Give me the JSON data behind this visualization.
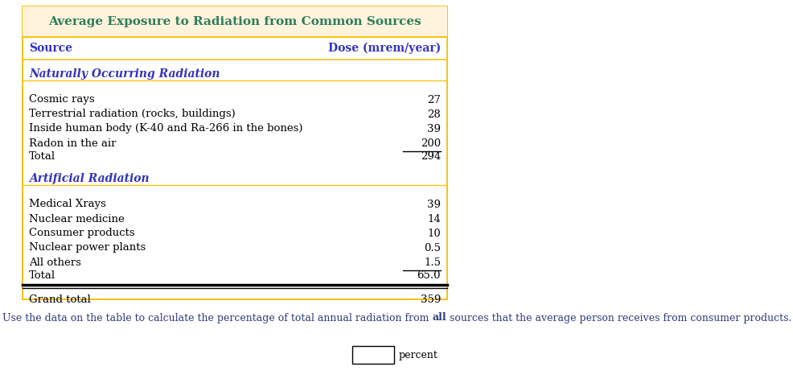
{
  "title": "Average Exposure to Radiation from Common Sources",
  "title_color": "#2E7D5B",
  "title_bg_color": "#FFF3DC",
  "table_border_color": "#F5C518",
  "col1_header": "Source",
  "col2_header": "Dose (mrem/year)",
  "header_text_color": "#3333BB",
  "section_color": "#3333BB",
  "natural_section": "Naturally Occurring Radiation",
  "natural_rows": [
    [
      "Cosmic rays",
      "27"
    ],
    [
      "Terrestrial radiation (rocks, buildings)",
      "28"
    ],
    [
      "Inside human body (K-40 and Ra-266 in the bones)",
      "39"
    ],
    [
      "Radon in the air",
      "200"
    ]
  ],
  "natural_total_label": "Total",
  "natural_total_value": "294",
  "artificial_section": "Artificial Radiation",
  "artificial_rows": [
    [
      "Medical Xrays",
      "39"
    ],
    [
      "Nuclear medicine",
      "14"
    ],
    [
      "Consumer products",
      "10"
    ],
    [
      "Nuclear power plants",
      "0.5"
    ],
    [
      "All others",
      "1.5"
    ]
  ],
  "artificial_total_label": "Total",
  "artificial_total_value": "65.0",
  "grand_total_label": "Grand total",
  "grand_total_value": "359",
  "underline_rows": [
    "Radon in the air",
    "All others"
  ],
  "question_parts": [
    "Use the data on the table to calculate the percentage of total annual radiation from ",
    "all",
    " sources that the average person receives from consumer products."
  ],
  "question_color": "#2E3A7A",
  "answer_label": "percent",
  "bg_color": "#FFFFFF",
  "font_family": "DejaVu Serif"
}
